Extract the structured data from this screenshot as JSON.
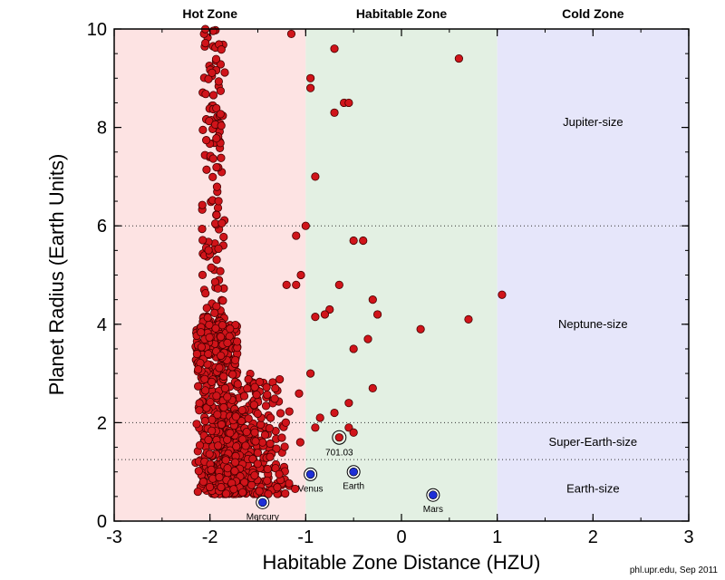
{
  "chart_data": {
    "type": "scatter",
    "title": "",
    "xlabel": "Habitable Zone Distance (HZU)",
    "ylabel": "Planet Radius (Earth Units)",
    "xlim": [
      -3,
      3
    ],
    "ylim": [
      0,
      10
    ],
    "x_ticks": [
      "-3",
      "-2",
      "-1",
      "0",
      "1",
      "2",
      "3"
    ],
    "y_ticks": [
      "0",
      "2",
      "4",
      "6",
      "8",
      "10"
    ],
    "zones": [
      {
        "label": "Hot Zone",
        "x_range": [
          -3,
          -1
        ],
        "color": "#fde3e3"
      },
      {
        "label": "Habitable Zone",
        "x_range": [
          -1,
          1
        ],
        "color": "#e3f0e3"
      },
      {
        "label": "Cold Zone",
        "x_range": [
          1,
          3
        ],
        "color": "#e6e6fa"
      }
    ],
    "size_classes": [
      {
        "label": "Jupiter-size",
        "y": 8.1
      },
      {
        "label": "Neptune-size",
        "y": 4.0
      },
      {
        "label": "Super-Earth-size",
        "y": 1.6
      },
      {
        "label": "Earth-size",
        "y": 0.65
      }
    ],
    "size_boundaries": [
      1.25,
      2,
      6
    ],
    "reference_planets": [
      {
        "name": "Mercury",
        "x": -1.45,
        "y": 0.38
      },
      {
        "name": "Venus",
        "x": -0.95,
        "y": 0.95
      },
      {
        "name": "Earth",
        "x": -0.5,
        "y": 1.0
      },
      {
        "name": "Mars",
        "x": 0.33,
        "y": 0.53
      }
    ],
    "highlight": {
      "name": "701.03",
      "x": -0.65,
      "y": 1.7
    },
    "marker_color": "#d0141a",
    "planet_marker_color": "#1f2fd6",
    "outlier_points": [
      [
        -0.7,
        9.6
      ],
      [
        0.6,
        9.4
      ],
      [
        -0.95,
        9.0
      ],
      [
        -0.95,
        8.8
      ],
      [
        -0.6,
        8.5
      ],
      [
        -0.55,
        8.5
      ],
      [
        -0.7,
        8.3
      ],
      [
        -0.9,
        7.0
      ],
      [
        -0.4,
        5.7
      ],
      [
        -0.5,
        5.7
      ],
      [
        -0.65,
        4.8
      ],
      [
        -0.3,
        4.5
      ],
      [
        -0.25,
        4.2
      ],
      [
        -0.75,
        4.3
      ],
      [
        -0.8,
        4.2
      ],
      [
        -0.9,
        4.15
      ],
      [
        0.7,
        4.1
      ],
      [
        0.2,
        3.9
      ],
      [
        -0.35,
        3.7
      ],
      [
        -0.5,
        3.5
      ],
      [
        -0.95,
        3.0
      ],
      [
        -0.3,
        2.7
      ],
      [
        -0.55,
        2.4
      ],
      [
        -0.7,
        2.2
      ],
      [
        -0.85,
        2.1
      ],
      [
        -0.9,
        1.9
      ],
      [
        -0.55,
        1.9
      ],
      [
        -0.5,
        1.8
      ],
      [
        1.05,
        4.6
      ],
      [
        -1.0,
        6.0
      ],
      [
        -1.05,
        5.0
      ],
      [
        -1.1,
        4.8
      ],
      [
        -1.2,
        4.8
      ],
      [
        -1.1,
        5.8
      ],
      [
        -1.15,
        9.9
      ]
    ],
    "cluster_note": "Several hundred candidates concentrated near x ≈ -2 (range about -2.2 to -1.0), radius 0.5–10."
  },
  "credit": "phl.upr.edu, Sep 2011"
}
